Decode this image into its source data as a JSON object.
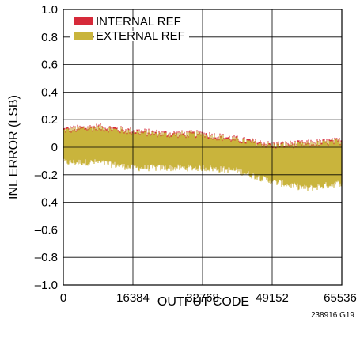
{
  "chart_data": {
    "type": "area",
    "title": "",
    "xlabel": "OUTPUT CODE",
    "ylabel": "INL ERROR (LSB)",
    "xlim": [
      0,
      65536
    ],
    "ylim": [
      -1.0,
      1.0
    ],
    "x_ticks": [
      "0",
      "16384",
      "32768",
      "49152",
      "65536"
    ],
    "y_ticks": [
      "1.0",
      "0.8",
      "0.6",
      "0.4",
      "0.2",
      "0",
      "–0.2",
      "–0.4",
      "–0.6",
      "–0.8",
      "–1.0"
    ],
    "grid": true,
    "legend_position": "top-left",
    "figure_id": "238916 G19",
    "series": [
      {
        "name": "INTERNAL REF",
        "color": "#d62a3a",
        "x": [
          0,
          8192,
          16384,
          24576,
          32768,
          40960,
          49152,
          57344,
          65536
        ],
        "upper": [
          0.13,
          0.15,
          0.12,
          0.1,
          0.1,
          0.06,
          0.02,
          0.03,
          0.05
        ],
        "lower": [
          -0.1,
          -0.1,
          -0.14,
          -0.14,
          -0.14,
          -0.16,
          -0.24,
          -0.29,
          -0.25
        ]
      },
      {
        "name": "EXTERNAL REF",
        "color": "#c9b43c",
        "x": [
          0,
          8192,
          16384,
          24576,
          32768,
          40960,
          49152,
          57344,
          65536
        ],
        "upper": [
          0.12,
          0.14,
          0.11,
          0.09,
          0.09,
          0.05,
          0.01,
          0.02,
          0.04
        ],
        "lower": [
          -0.11,
          -0.11,
          -0.15,
          -0.15,
          -0.15,
          -0.17,
          -0.25,
          -0.3,
          -0.26
        ]
      }
    ]
  }
}
